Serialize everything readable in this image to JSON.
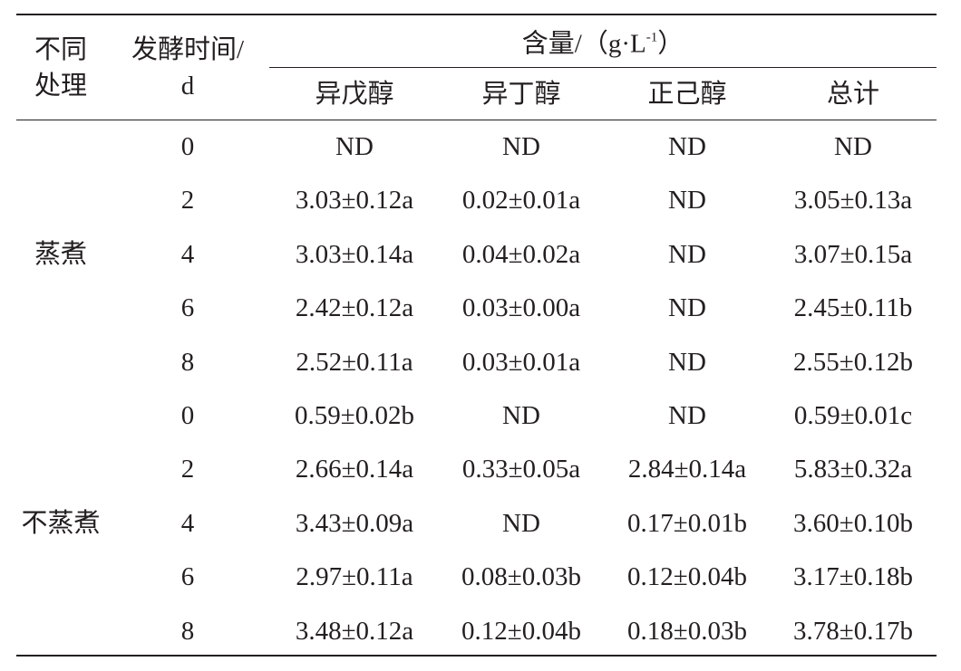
{
  "header": {
    "treatment_label": [
      "不同",
      "处理"
    ],
    "time_label": [
      "发酵时间/",
      "d"
    ],
    "content_label": {
      "text": "含量/（g·L",
      "superscript": "-1",
      "suffix": "）"
    },
    "columns": [
      "异戊醇",
      "异丁醇",
      "正己醇",
      "总计"
    ]
  },
  "groups": [
    {
      "label": "蒸煮",
      "rows": [
        [
          "0",
          "ND",
          "ND",
          "ND",
          "ND"
        ],
        [
          "2",
          "3.03±0.12a",
          "0.02±0.01a",
          "ND",
          "3.05±0.13a"
        ],
        [
          "4",
          "3.03±0.14a",
          "0.04±0.02a",
          "ND",
          "3.07±0.15a"
        ],
        [
          "6",
          "2.42±0.12a",
          "0.03±0.00a",
          "ND",
          "2.45±0.11b"
        ],
        [
          "8",
          "2.52±0.11a",
          "0.03±0.01a",
          "ND",
          "2.55±0.12b"
        ]
      ]
    },
    {
      "label": "不蒸煮",
      "rows": [
        [
          "0",
          "0.59±0.02b",
          "ND",
          "ND",
          "0.59±0.01c"
        ],
        [
          "2",
          "2.66±0.14a",
          "0.33±0.05a",
          "2.84±0.14a",
          "5.83±0.32a"
        ],
        [
          "4",
          "3.43±0.09a",
          "ND",
          "0.17±0.01b",
          "3.60±0.10b"
        ],
        [
          "6",
          "2.97±0.11a",
          "0.08±0.03b",
          "0.12±0.04b",
          "3.17±0.18b"
        ],
        [
          "8",
          "3.48±0.12a",
          "0.12±0.04b",
          "0.18±0.03b",
          "3.78±0.17b"
        ]
      ]
    }
  ]
}
